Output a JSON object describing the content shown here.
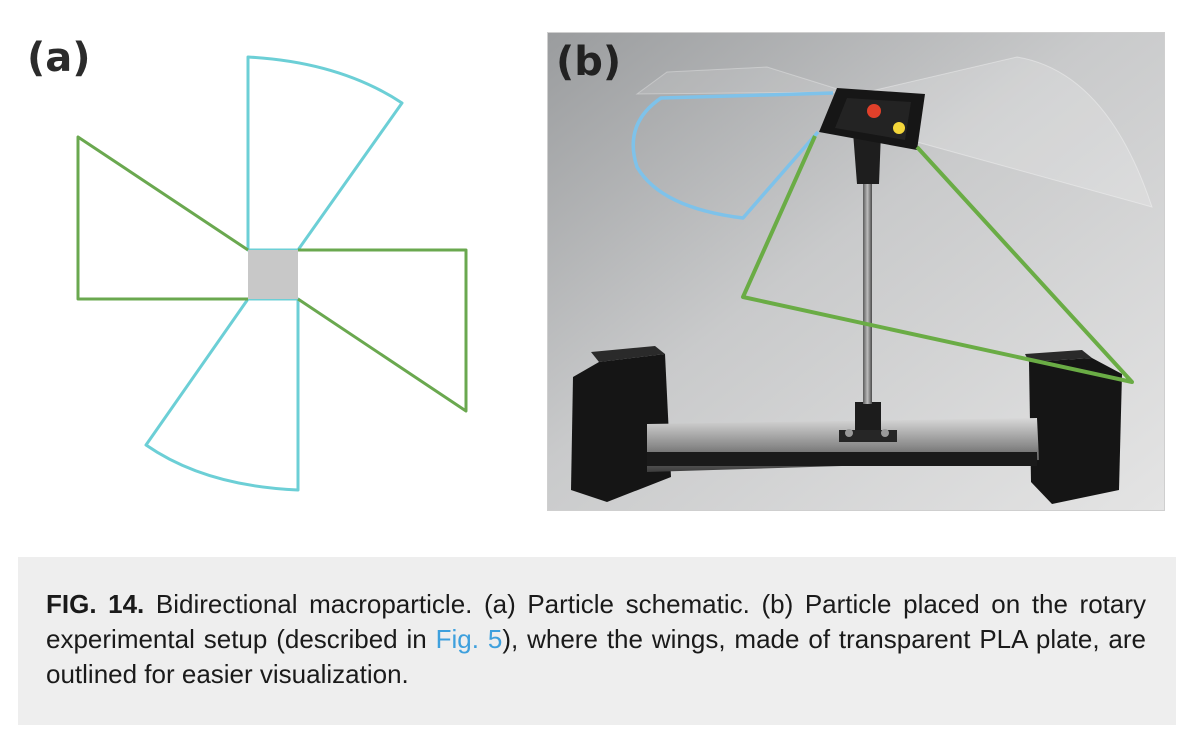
{
  "figure": {
    "panel_a_label": "(a)",
    "panel_b_label": "(b)",
    "caption": {
      "label": "FIG. 14.",
      "text_1": " Bidirectional macroparticle. (a) Particle schematic. (b) Particle placed on the rotary experimental setup (described in ",
      "link_text": "Fig. 5",
      "text_2": "), where the wings, made of transparent PLA plate, are outlined for easier visualization."
    }
  },
  "colors": {
    "fan_wing_outline": "#6ccfd6",
    "triangle_wing_outline": "#6aa84f",
    "hub": "#c8c8c8",
    "link": "#3ea0dd",
    "caption_background": "#eeeeee"
  }
}
